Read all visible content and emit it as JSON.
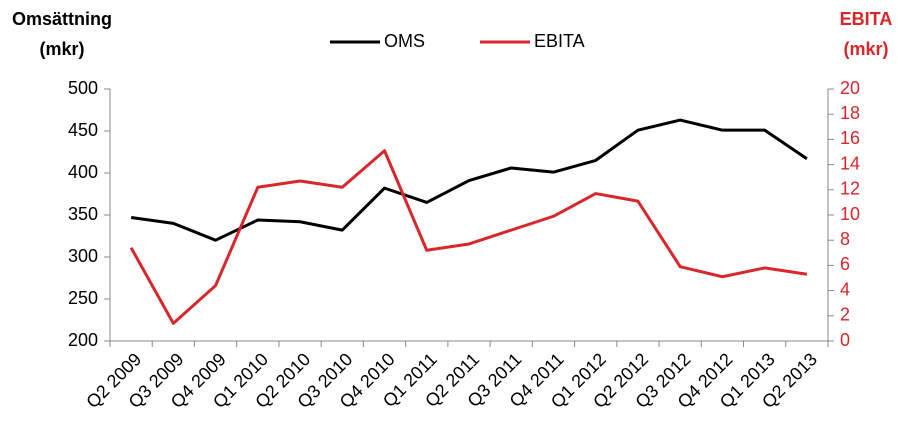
{
  "chart_data": {
    "type": "line",
    "y_label": [
      "Omsättning",
      "(mkr)"
    ],
    "y2_label": [
      "EBITA",
      "(mkr)"
    ],
    "categories": [
      "Q2 2009",
      "Q3 2009",
      "Q4 2009",
      "Q1 2010",
      "Q2 2010",
      "Q3 2010",
      "Q4 2010",
      "Q1 2011",
      "Q2 2011",
      "Q3 2011",
      "Q4 2011",
      "Q1 2012",
      "Q2 2012",
      "Q3 2012",
      "Q4 2012",
      "Q1 2013",
      "Q2 2013"
    ],
    "series": [
      {
        "name": "OMS",
        "color": "#000000",
        "values": [
          347,
          340,
          320,
          344,
          342,
          332,
          382,
          365,
          391,
          406,
          401,
          415,
          451,
          463,
          451,
          451,
          417
        ]
      },
      {
        "name": "EBITA",
        "color": "#d9262b",
        "axis": "y2",
        "values": [
          7.4,
          1.4,
          4.4,
          12.2,
          12.7,
          12.2,
          15.1,
          7.2,
          7.7,
          8.8,
          9.9,
          11.7,
          11.1,
          5.9,
          5.1,
          5.8,
          5.3
        ]
      }
    ],
    "ylim": [
      200,
      500
    ],
    "yticks": [
      200,
      250,
      300,
      350,
      400,
      450,
      500
    ],
    "y2lim": [
      0,
      20
    ],
    "y2ticks": [
      0,
      2,
      4,
      6,
      8,
      10,
      12,
      14,
      16,
      18,
      20
    ],
    "legend": "top",
    "grid": false
  }
}
